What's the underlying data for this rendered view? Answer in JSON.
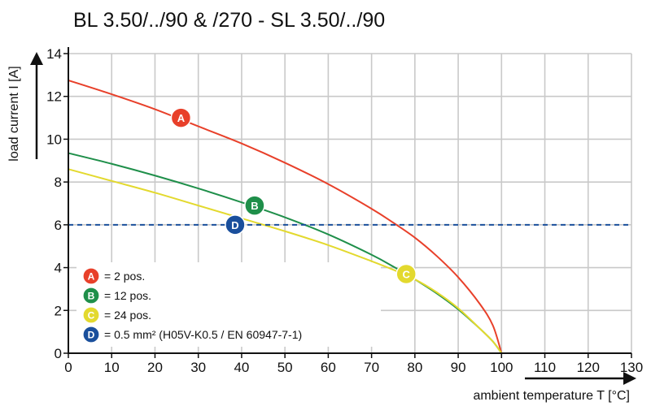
{
  "chart_data": {
    "type": "line",
    "title": "BL 3.50/../90 & /270 - SL 3.50/../90",
    "xlabel": "ambient temperature T [°C]",
    "ylabel": "load current I [A]",
    "xlim": [
      0,
      130
    ],
    "ylim": [
      0,
      14
    ],
    "x_ticks": [
      0,
      10,
      20,
      30,
      40,
      50,
      60,
      70,
      80,
      90,
      100,
      110,
      120,
      130
    ],
    "y_ticks": [
      0,
      2,
      4,
      6,
      8,
      10,
      12,
      14
    ],
    "grid": true,
    "legend_placement": "bottom-left",
    "series": [
      {
        "name": "A",
        "color": "#e8402a",
        "x": [
          0,
          10,
          20,
          30,
          40,
          50,
          60,
          70,
          75,
          80,
          85,
          90,
          95,
          98,
          100
        ],
        "y": [
          12.75,
          12.1,
          11.4,
          10.6,
          9.8,
          8.9,
          7.9,
          6.75,
          6.1,
          5.4,
          4.55,
          3.55,
          2.3,
          1.3,
          0
        ],
        "marker": {
          "label": "A",
          "x": 26,
          "y": 11.0
        }
      },
      {
        "name": "B",
        "color": "#1f8f4a",
        "x": [
          0,
          10,
          20,
          30,
          40,
          50,
          60,
          70,
          75,
          80,
          85,
          90,
          95,
          98,
          100
        ],
        "y": [
          9.35,
          8.85,
          8.3,
          7.7,
          7.05,
          6.35,
          5.55,
          4.6,
          4.05,
          3.45,
          2.8,
          2.05,
          1.15,
          0.55,
          0
        ],
        "marker": {
          "label": "B",
          "x": 43,
          "y": 6.9
        }
      },
      {
        "name": "C",
        "color": "#e3d92e",
        "x": [
          0,
          10,
          20,
          30,
          40,
          50,
          60,
          70,
          75,
          80,
          85,
          90,
          95,
          98,
          100
        ],
        "y": [
          8.6,
          8.05,
          7.5,
          6.9,
          6.3,
          5.7,
          5.05,
          4.3,
          3.9,
          3.45,
          2.85,
          2.1,
          1.15,
          0.55,
          0
        ],
        "marker": {
          "label": "C",
          "x": 78,
          "y": 3.7
        }
      },
      {
        "name": "D",
        "color": "#1a4f9c",
        "dashed": true,
        "x": [
          0,
          130
        ],
        "y": [
          6,
          6
        ],
        "marker": {
          "label": "D",
          "x": 38.5,
          "y": 6.0
        }
      }
    ],
    "legend": [
      {
        "label": "A",
        "color": "#e8402a",
        "text": "= 2 pos."
      },
      {
        "label": "B",
        "color": "#1f8f4a",
        "text": "= 12 pos."
      },
      {
        "label": "C",
        "color": "#e3d92e",
        "text": "= 24 pos."
      },
      {
        "label": "D",
        "color": "#1a4f9c",
        "text": "= 0.5 mm² (H05V-K0.5 / EN 60947-7-1)"
      }
    ]
  }
}
